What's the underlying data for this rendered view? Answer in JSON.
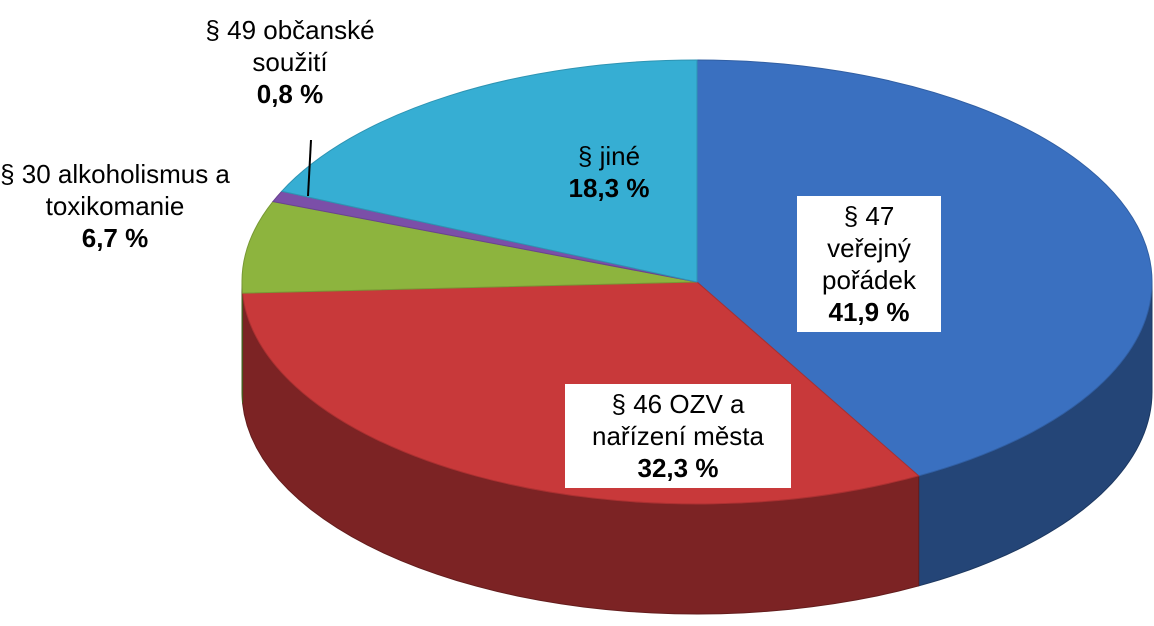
{
  "chart_data": {
    "type": "pie",
    "categories": [
      "§ 47 veřejný pořádek",
      "§ 46 OZV a nařízení města",
      "§ 30 alkoholismus a toxikomanie",
      "§ 49 občanské soužití",
      "§ jiné"
    ],
    "values": [
      41.9,
      32.3,
      6.7,
      0.8,
      18.3
    ],
    "value_labels": [
      "41,9 %",
      "32,3 %",
      "6,7 %",
      "0,8 %",
      "18,3 %"
    ],
    "colors": [
      "#3a70c0",
      "#c8393a",
      "#8db43e",
      "#7b4fa8",
      "#36aed3"
    ]
  }
}
